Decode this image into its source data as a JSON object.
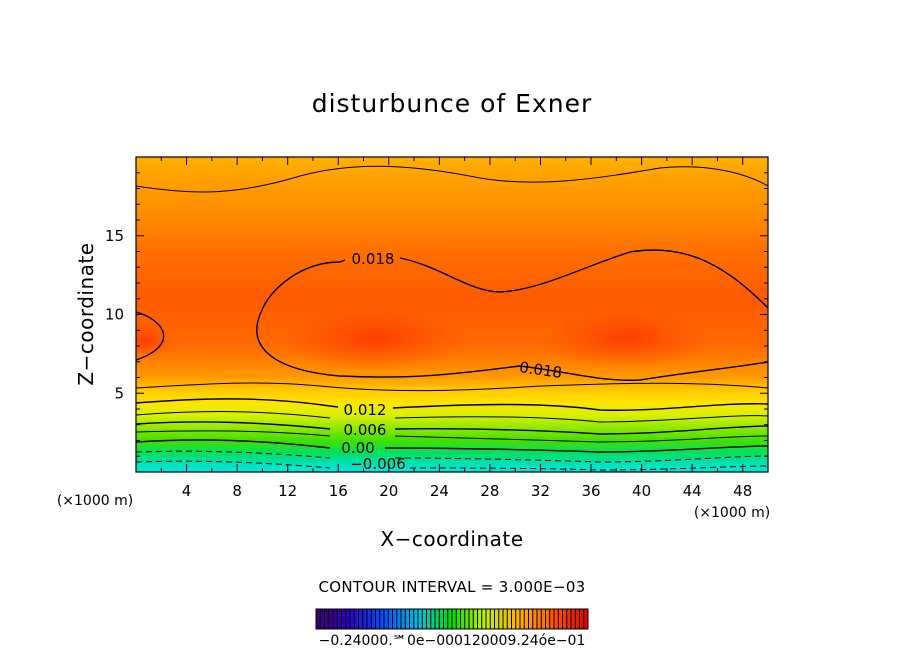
{
  "chart_data": {
    "type": "heatmap",
    "title": "disturbunce of Exner",
    "xlabel": "X−coordinate",
    "ylabel": "Z−coordinate",
    "x_unit": "(×1000 m)",
    "y_unit": "(×1000 m)",
    "xlim": [
      0,
      50
    ],
    "ylim": [
      0,
      20
    ],
    "x_ticks": [
      "4",
      "8",
      "12",
      "16",
      "20",
      "24",
      "28",
      "32",
      "36",
      "40",
      "44",
      "48"
    ],
    "y_ticks": [
      "5",
      "10",
      "15"
    ],
    "contour_labels": [
      "0.018",
      "0.018",
      "0.012",
      "0.006",
      "0.00",
      "−0.006"
    ],
    "contour_interval_text": "CONTOUR INTERVAL = 3.000E−03",
    "colorbar_labels": "−0.24000.℠0e−000120009.24óe−01",
    "field_range": [
      -0.024,
      0.024
    ],
    "max_regions": [
      {
        "x": 19,
        "z": 8.5,
        "value": 0.024
      },
      {
        "x": 39,
        "z": 8.5,
        "value": 0.024
      }
    ],
    "grid": false,
    "colormap": "rainbow"
  }
}
